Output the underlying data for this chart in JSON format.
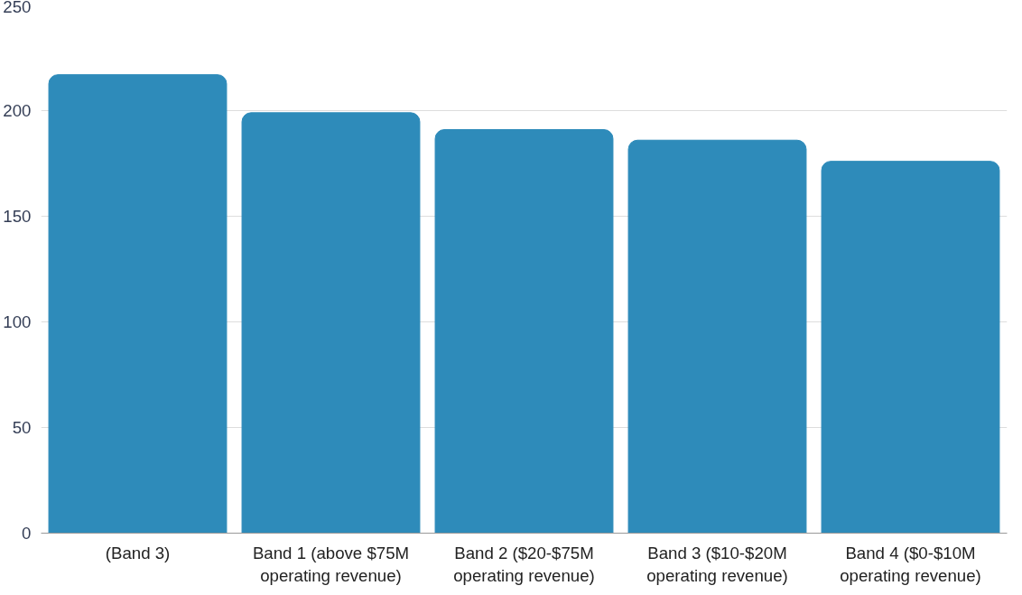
{
  "chart_data": {
    "type": "bar",
    "categories": [
      "(Band 3)",
      "Band 1 (above $75M operating revenue)",
      "Band 2 ($20-$75M operating revenue)",
      "Band 3 ($10-$20M operating revenue)",
      "Band 4 ($0-$10M operating revenue)"
    ],
    "values": [
      217,
      199,
      191,
      186,
      176
    ],
    "color": "#2e8bba",
    "ylim": [
      0,
      250
    ],
    "yticks": [
      0,
      50,
      100,
      150,
      200,
      250
    ],
    "grid": "y"
  }
}
